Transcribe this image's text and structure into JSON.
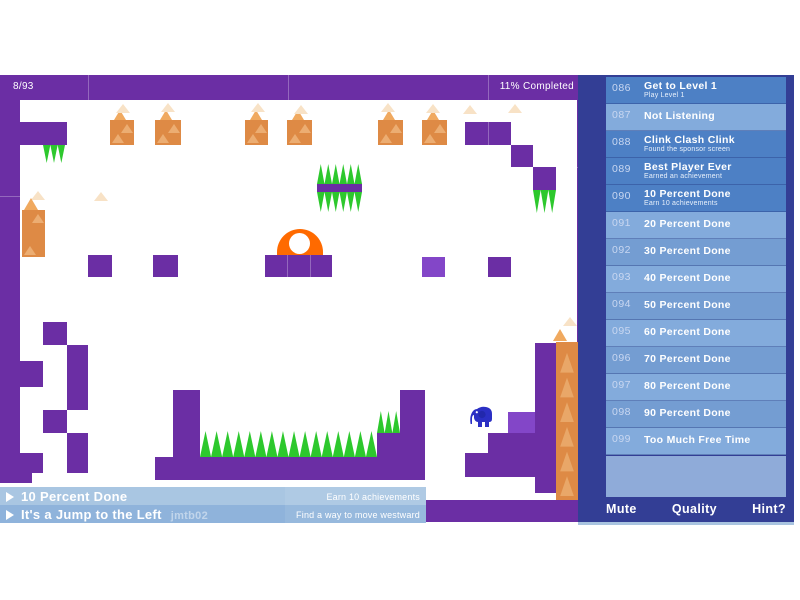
{
  "hud": {
    "level_progress": "8/93",
    "completed": "11% Completed"
  },
  "banners": [
    {
      "title": "10 Percent Done",
      "subtitle": "Earn 10 achievements",
      "watermark": ""
    },
    {
      "title": "It's a Jump to the Left",
      "subtitle": "Find a way to move westward",
      "watermark": "jmtb02"
    }
  ],
  "sidebar": {
    "achievements": [
      {
        "number": "086",
        "title": "Get to Level 1",
        "subtitle": "Play Level 1",
        "earned": true
      },
      {
        "number": "087",
        "title": "Not Listening",
        "subtitle": "",
        "earned": false
      },
      {
        "number": "088",
        "title": "Clink Clash Clink",
        "subtitle": "Found the sponsor screen",
        "earned": true
      },
      {
        "number": "089",
        "title": "Best Player Ever",
        "subtitle": "Earned an achievement",
        "earned": true
      },
      {
        "number": "090",
        "title": "10 Percent Done",
        "subtitle": "Earn 10 achievements",
        "earned": true
      },
      {
        "number": "091",
        "title": "20 Percent Done",
        "subtitle": "",
        "earned": false
      },
      {
        "number": "092",
        "title": "30 Percent Done",
        "subtitle": "",
        "earned": false
      },
      {
        "number": "093",
        "title": "40 Percent Done",
        "subtitle": "",
        "earned": false
      },
      {
        "number": "094",
        "title": "50 Percent Done",
        "subtitle": "",
        "earned": false
      },
      {
        "number": "095",
        "title": "60 Percent Done",
        "subtitle": "",
        "earned": false
      },
      {
        "number": "096",
        "title": "70 Percent Done",
        "subtitle": "",
        "earned": false
      },
      {
        "number": "097",
        "title": "80 Percent Done",
        "subtitle": "",
        "earned": false
      },
      {
        "number": "098",
        "title": "90 Percent Done",
        "subtitle": "",
        "earned": false
      },
      {
        "number": "099",
        "title": "Too Much Free Time",
        "subtitle": "",
        "earned": false
      }
    ],
    "buttons": {
      "mute": "Mute",
      "quality": "Quality",
      "hint": "Hint?"
    }
  },
  "colors": {
    "purple": "#6B2EA4",
    "purple_light": "#8346C8",
    "spike_green": "#2DC82D",
    "crate_orange": "#DE8A45",
    "dome_orange": "#FF6A00",
    "elephant_blue": "#2B2FC4",
    "sidebar_navy": "#333E95",
    "earned_row": "#4D80C5",
    "unearned_row_a": "#749DD2",
    "unearned_row_b": "#83ABDC",
    "banner1_bg": "#A9C6E2",
    "banner2_bg": "#8FB3DB",
    "thumb_yellow": "#FFB300"
  }
}
